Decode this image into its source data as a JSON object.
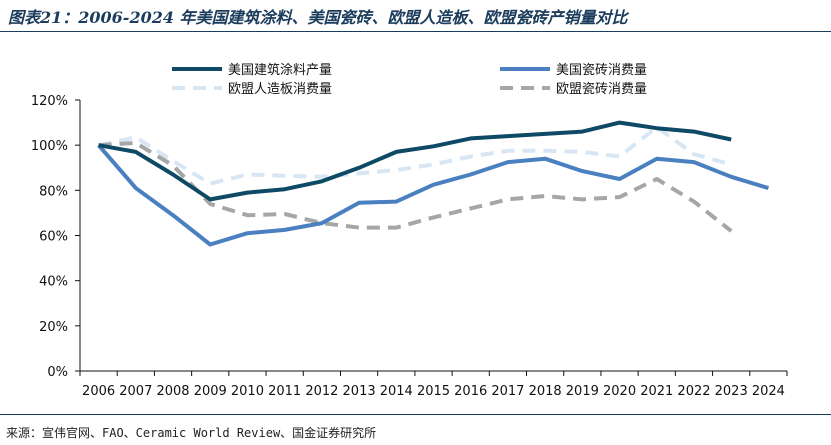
{
  "title": "图表21：2006-2024 年美国建筑涂料、美国瓷砖、欧盟人造板、欧盟瓷砖产销量对比",
  "source": "来源：宣伟官网、FAO、Ceramic World Review、国金证券研究所",
  "chart_data": {
    "type": "line",
    "title": "图表21：2006-2024 年美国建筑涂料、美国瓷砖、欧盟人造板、欧盟瓷砖产销量对比",
    "xlabel": "",
    "ylabel": "",
    "x": [
      "2006",
      "2007",
      "2008",
      "2009",
      "2010",
      "2011",
      "2012",
      "2013",
      "2014",
      "2015",
      "2016",
      "2017",
      "2018",
      "2019",
      "2020",
      "2021",
      "2022",
      "2023",
      "2024"
    ],
    "ylim": [
      0,
      120
    ],
    "yticks": [
      "0%",
      "20%",
      "40%",
      "60%",
      "80%",
      "100%",
      "120%"
    ],
    "grid": false,
    "legend_position": "top",
    "series": [
      {
        "name": "美国建筑涂料产量",
        "color": "#0e4a66",
        "dash": "solid",
        "values": [
          100,
          97,
          87,
          76,
          79,
          80.5,
          84,
          90,
          97,
          99.5,
          103,
          104,
          105,
          106,
          110,
          107.5,
          106,
          102.5,
          null
        ]
      },
      {
        "name": "美国瓷砖消费量",
        "color": "#4a80c0",
        "dash": "solid",
        "values": [
          100,
          81,
          69,
          56,
          61,
          62.5,
          65.5,
          74.5,
          75,
          82.5,
          87,
          92.5,
          94,
          88.5,
          85,
          94,
          92.5,
          86,
          81
        ]
      },
      {
        "name": "欧盟人造板消费量",
        "color": "#d8e6f4",
        "dash": "dashed",
        "values": [
          100,
          103.5,
          93,
          83,
          87,
          86.5,
          86,
          87.5,
          89,
          91.5,
          95,
          97.5,
          97.5,
          97,
          95,
          108,
          96,
          91.5,
          null
        ]
      },
      {
        "name": "欧盟瓷砖消费量",
        "color": "#a6a6a6",
        "dash": "dashed",
        "values": [
          100,
          101,
          91,
          74,
          69,
          69.5,
          65.5,
          63.5,
          63.5,
          68,
          72,
          76,
          77.5,
          76,
          77,
          85,
          75,
          62,
          null
        ]
      }
    ]
  }
}
